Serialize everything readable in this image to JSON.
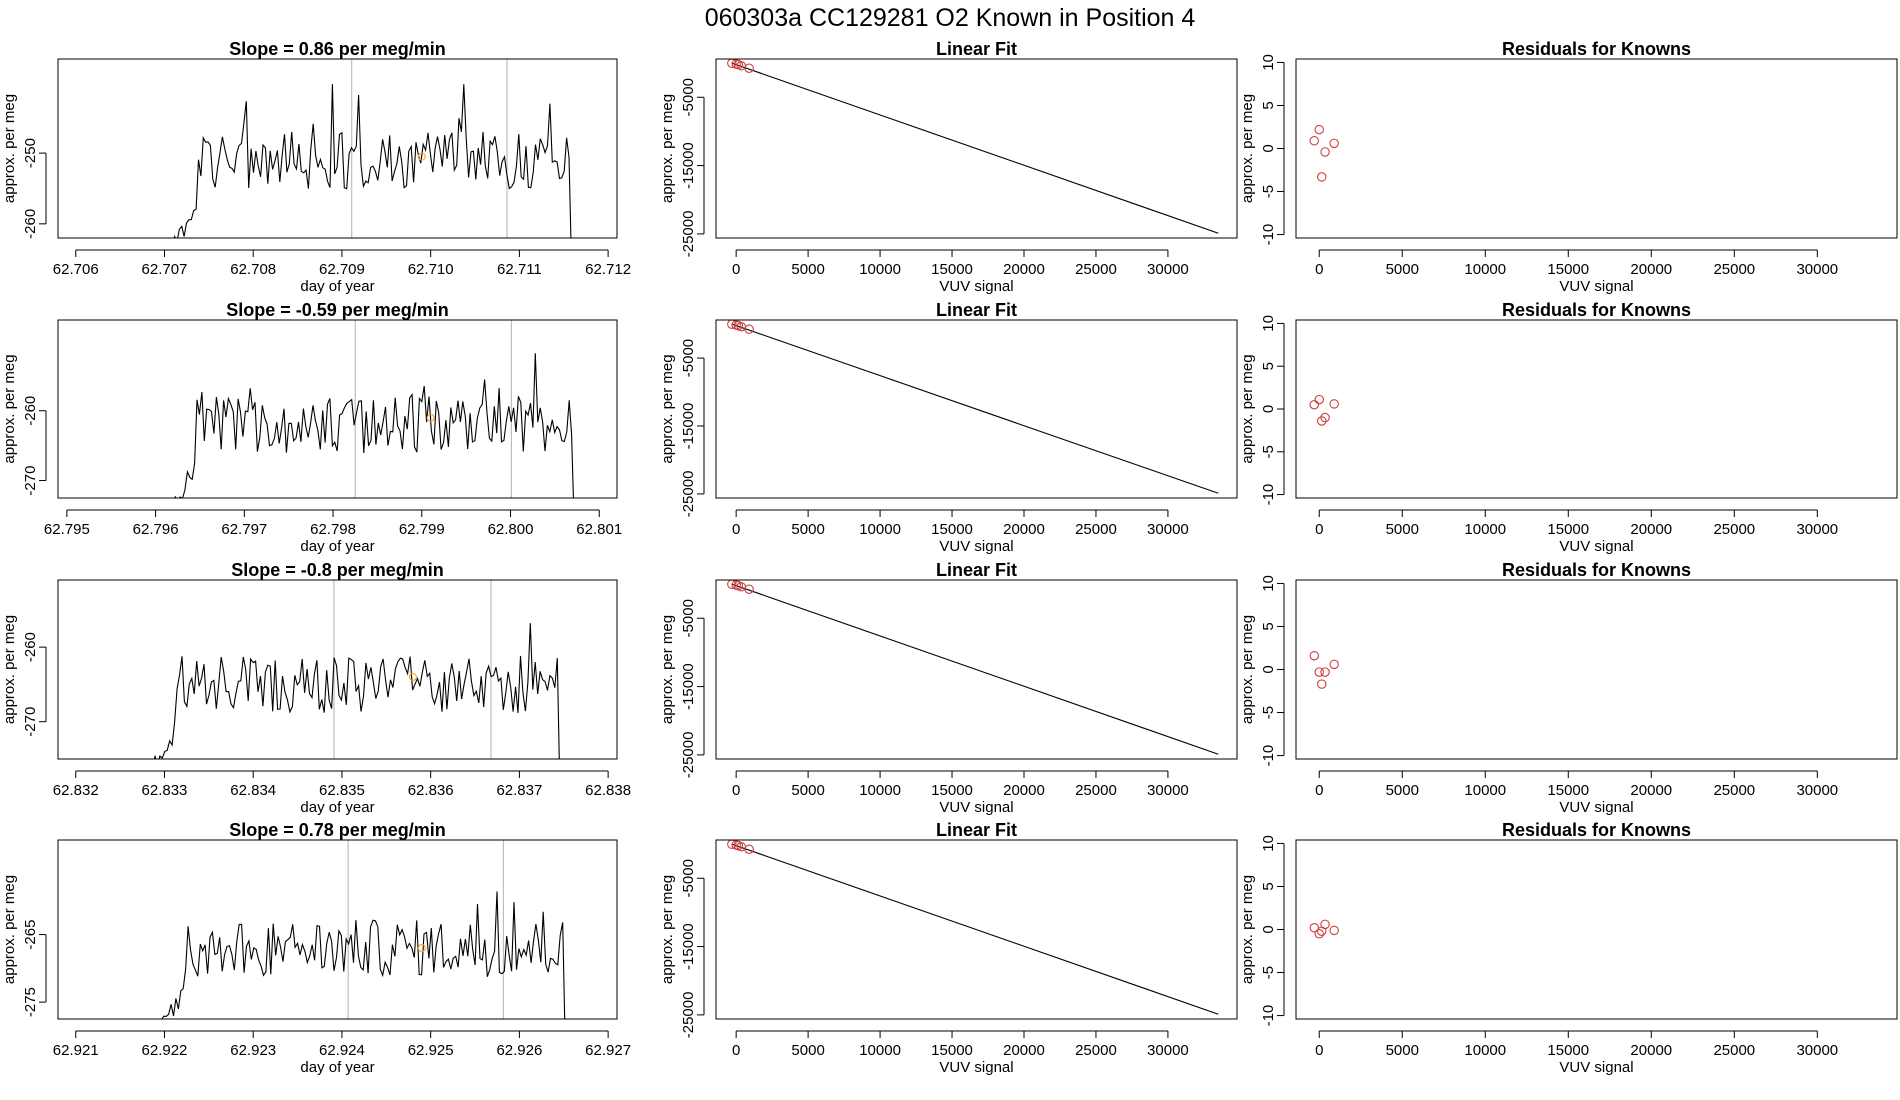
{
  "title": "060303a      CC129281    O2 Known in Position  4",
  "colors": {
    "line": "#000000",
    "point": "#cd3f3f",
    "highlight": "#f5a623",
    "vline": "#bdbdbd",
    "frame": "#000000"
  },
  "chart_data": [
    {
      "type": "line",
      "panel": "time-series",
      "row": 1,
      "title": "Slope =  0.86  per meg/min",
      "xlabel": "day of year",
      "ylabel": "approx. per meg",
      "xlim": [
        62.7058,
        62.7121
      ],
      "ylim": [
        -262,
        -236.7
      ],
      "xticks": [
        62.706,
        62.707,
        62.708,
        62.709,
        62.71,
        62.711,
        62.712
      ],
      "xtick_labels": [
        "62.706",
        "62.707",
        "62.708",
        "62.709",
        "62.710",
        "62.711",
        "62.712"
      ],
      "yticks": [
        -260,
        -250
      ],
      "ytick_labels": [
        "-260",
        "-250"
      ],
      "vlines": [
        62.70911,
        62.71086
      ],
      "series_start": 62.70706,
      "series_end": 62.71164,
      "series_base": -251,
      "highlight_point": [
        62.7099,
        -250.5
      ]
    },
    {
      "type": "line",
      "panel": "time-series",
      "row": 2,
      "title": "Slope =  -0.59  per meg/min",
      "xlabel": "day of year",
      "ylabel": "approx. per meg",
      "xlim": [
        62.7949,
        62.8012
      ],
      "ylim": [
        -272.5,
        -247
      ],
      "xticks": [
        62.795,
        62.796,
        62.797,
        62.798,
        62.799,
        62.8,
        62.801
      ],
      "xtick_labels": [
        "62.795",
        "62.796",
        "62.797",
        "62.798",
        "62.799",
        "62.800",
        "62.801"
      ],
      "yticks": [
        -270,
        -260
      ],
      "ytick_labels": [
        "-270",
        "-260"
      ],
      "vlines": [
        62.79825,
        62.80001
      ],
      "series_start": 62.79614,
      "series_end": 62.80077,
      "series_base": -262,
      "highlight_point": [
        62.7991,
        -261
      ]
    },
    {
      "type": "line",
      "panel": "time-series",
      "row": 3,
      "title": "Slope =  -0.8  per meg/min",
      "xlabel": "day of year",
      "ylabel": "approx. per meg",
      "xlim": [
        62.8318,
        62.8381
      ],
      "ylim": [
        -275,
        -251
      ],
      "xticks": [
        62.832,
        62.833,
        62.834,
        62.835,
        62.836,
        62.837,
        62.838
      ],
      "xtick_labels": [
        "62.832",
        "62.833",
        "62.834",
        "62.835",
        "62.836",
        "62.837",
        "62.838"
      ],
      "yticks": [
        -270,
        -260
      ],
      "ytick_labels": [
        "-270",
        "-260"
      ],
      "vlines": [
        62.83491,
        62.83668
      ],
      "series_start": 62.83281,
      "series_end": 62.83751,
      "series_base": -265,
      "highlight_point": [
        62.8358,
        -264
      ]
    },
    {
      "type": "line",
      "panel": "time-series",
      "row": 4,
      "title": "Slope =  0.78  per meg/min",
      "xlabel": "day of year",
      "ylabel": "approx. per meg",
      "xlim": [
        62.9208,
        62.9271
      ],
      "ylim": [
        -277.5,
        -251
      ],
      "xticks": [
        62.921,
        62.922,
        62.923,
        62.924,
        62.925,
        62.926,
        62.927
      ],
      "xtick_labels": [
        "62.921",
        "62.922",
        "62.923",
        "62.924",
        "62.925",
        "62.926",
        "62.927"
      ],
      "yticks": [
        -275,
        -265
      ],
      "ytick_labels": [
        "-275",
        "-265"
      ],
      "vlines": [
        62.92407,
        62.92582
      ],
      "series_start": 62.92191,
      "series_end": 62.92657,
      "series_base": -267,
      "highlight_point": [
        62.9249,
        -267
      ]
    },
    {
      "type": "scatter",
      "panel": "linear-fit",
      "row": 1,
      "title": "Linear Fit",
      "xlabel": "VUV signal",
      "ylabel": "approx. per meg",
      "xlim": [
        -1400,
        34800
      ],
      "ylim": [
        -25600,
        600
      ],
      "xticks": [
        0,
        5000,
        10000,
        15000,
        20000,
        25000,
        30000
      ],
      "xtick_labels": [
        "0",
        "5000",
        "10000",
        "15000",
        "20000",
        "25000",
        "30000"
      ],
      "yticks": [
        -25000,
        -15000,
        -5000
      ],
      "ytick_labels": [
        "-25000",
        "-15000",
        "-5000"
      ],
      "points": [
        [
          -300,
          -20
        ],
        [
          0,
          -140
        ],
        [
          150,
          -230
        ],
        [
          350,
          -390
        ],
        [
          900,
          -750
        ]
      ],
      "fit_line": [
        [
          -300,
          0
        ],
        [
          33500,
          -24900
        ]
      ]
    },
    {
      "type": "scatter",
      "panel": "linear-fit",
      "row": 2,
      "title": "Linear Fit",
      "xlabel": "VUV signal",
      "ylabel": "approx. per meg",
      "xlim": [
        -1400,
        34800
      ],
      "ylim": [
        -25600,
        600
      ],
      "xticks": [
        0,
        5000,
        10000,
        15000,
        20000,
        25000,
        30000
      ],
      "xtick_labels": [
        "0",
        "5000",
        "10000",
        "15000",
        "20000",
        "25000",
        "30000"
      ],
      "yticks": [
        -25000,
        -15000,
        -5000
      ],
      "ytick_labels": [
        "-25000",
        "-15000",
        "-5000"
      ],
      "points": [
        [
          -300,
          -20
        ],
        [
          0,
          -140
        ],
        [
          150,
          -230
        ],
        [
          350,
          -390
        ],
        [
          900,
          -750
        ]
      ],
      "fit_line": [
        [
          -300,
          0
        ],
        [
          33500,
          -24900
        ]
      ]
    },
    {
      "type": "scatter",
      "panel": "linear-fit",
      "row": 3,
      "title": "Linear Fit",
      "xlabel": "VUV signal",
      "ylabel": "approx. per meg",
      "xlim": [
        -1400,
        34800
      ],
      "ylim": [
        -25600,
        600
      ],
      "xticks": [
        0,
        5000,
        10000,
        15000,
        20000,
        25000,
        30000
      ],
      "xtick_labels": [
        "0",
        "5000",
        "10000",
        "15000",
        "20000",
        "25000",
        "30000"
      ],
      "yticks": [
        -25000,
        -15000,
        -5000
      ],
      "ytick_labels": [
        "-25000",
        "-15000",
        "-5000"
      ],
      "points": [
        [
          -300,
          -20
        ],
        [
          0,
          -140
        ],
        [
          150,
          -230
        ],
        [
          350,
          -390
        ],
        [
          900,
          -750
        ]
      ],
      "fit_line": [
        [
          -300,
          0
        ],
        [
          33500,
          -24900
        ]
      ]
    },
    {
      "type": "scatter",
      "panel": "linear-fit",
      "row": 4,
      "title": "Linear Fit",
      "xlabel": "VUV signal",
      "ylabel": "approx. per meg",
      "xlim": [
        -1400,
        34800
      ],
      "ylim": [
        -25600,
        600
      ],
      "xticks": [
        0,
        5000,
        10000,
        15000,
        20000,
        25000,
        30000
      ],
      "xtick_labels": [
        "0",
        "5000",
        "10000",
        "15000",
        "20000",
        "25000",
        "30000"
      ],
      "yticks": [
        -25000,
        -15000,
        -5000
      ],
      "ytick_labels": [
        "-25000",
        "-15000",
        "-5000"
      ],
      "points": [
        [
          -300,
          -20
        ],
        [
          0,
          -140
        ],
        [
          150,
          -230
        ],
        [
          350,
          -390
        ],
        [
          900,
          -750
        ]
      ],
      "fit_line": [
        [
          -300,
          0
        ],
        [
          33500,
          -24900
        ]
      ]
    },
    {
      "type": "scatter",
      "panel": "residuals",
      "row": 1,
      "title": "Residuals for Knowns",
      "xlabel": "VUV signal",
      "ylabel": "approx. per meg",
      "xlim": [
        -1400,
        34800
      ],
      "ylim": [
        -10.4,
        10.4
      ],
      "xticks": [
        0,
        5000,
        10000,
        15000,
        20000,
        25000,
        30000
      ],
      "xtick_labels": [
        "0",
        "5000",
        "10000",
        "15000",
        "20000",
        "25000",
        "30000"
      ],
      "yticks": [
        -10,
        -5,
        0,
        5,
        10
      ],
      "ytick_labels": [
        "-10",
        "-5",
        "0",
        "5",
        "10"
      ],
      "points": [
        [
          -300,
          0.9
        ],
        [
          0,
          2.2
        ],
        [
          150,
          -3.3
        ],
        [
          350,
          -0.4
        ],
        [
          900,
          0.6
        ]
      ]
    },
    {
      "type": "scatter",
      "panel": "residuals",
      "row": 2,
      "title": "Residuals for Knowns",
      "xlabel": "VUV signal",
      "ylabel": "approx. per meg",
      "xlim": [
        -1400,
        34800
      ],
      "ylim": [
        -10.4,
        10.4
      ],
      "xticks": [
        0,
        5000,
        10000,
        15000,
        20000,
        25000,
        30000
      ],
      "xtick_labels": [
        "0",
        "5000",
        "10000",
        "15000",
        "20000",
        "25000",
        "30000"
      ],
      "yticks": [
        -10,
        -5,
        0,
        5,
        10
      ],
      "ytick_labels": [
        "-10",
        "-5",
        "0",
        "5",
        "10"
      ],
      "points": [
        [
          -300,
          0.5
        ],
        [
          0,
          1.1
        ],
        [
          150,
          -1.4
        ],
        [
          350,
          -1.0
        ],
        [
          900,
          0.6
        ]
      ]
    },
    {
      "type": "scatter",
      "panel": "residuals",
      "row": 3,
      "title": "Residuals for Knowns",
      "xlabel": "VUV signal",
      "ylabel": "approx. per meg",
      "xlim": [
        -1400,
        34800
      ],
      "ylim": [
        -10.4,
        10.4
      ],
      "xticks": [
        0,
        5000,
        10000,
        15000,
        20000,
        25000,
        30000
      ],
      "xtick_labels": [
        "0",
        "5000",
        "10000",
        "15000",
        "20000",
        "25000",
        "30000"
      ],
      "yticks": [
        -10,
        -5,
        0,
        5,
        10
      ],
      "ytick_labels": [
        "-10",
        "-5",
        "0",
        "5",
        "10"
      ],
      "points": [
        [
          -300,
          1.6
        ],
        [
          0,
          -0.3
        ],
        [
          150,
          -1.7
        ],
        [
          350,
          -0.3
        ],
        [
          900,
          0.6
        ]
      ]
    },
    {
      "type": "scatter",
      "panel": "residuals",
      "row": 4,
      "title": "Residuals for Knowns",
      "xlabel": "VUV signal",
      "ylabel": "approx. per meg",
      "xlim": [
        -1400,
        34800
      ],
      "ylim": [
        -10.4,
        10.4
      ],
      "xticks": [
        0,
        5000,
        10000,
        15000,
        20000,
        25000,
        30000
      ],
      "xtick_labels": [
        "0",
        "5000",
        "10000",
        "15000",
        "20000",
        "25000",
        "30000"
      ],
      "yticks": [
        -10,
        -5,
        0,
        5,
        10
      ],
      "ytick_labels": [
        "-10",
        "-5",
        "0",
        "5",
        "10"
      ],
      "points": [
        [
          -300,
          0.2
        ],
        [
          0,
          -0.5
        ],
        [
          150,
          -0.2
        ],
        [
          350,
          0.6
        ],
        [
          900,
          -0.1
        ]
      ]
    }
  ]
}
